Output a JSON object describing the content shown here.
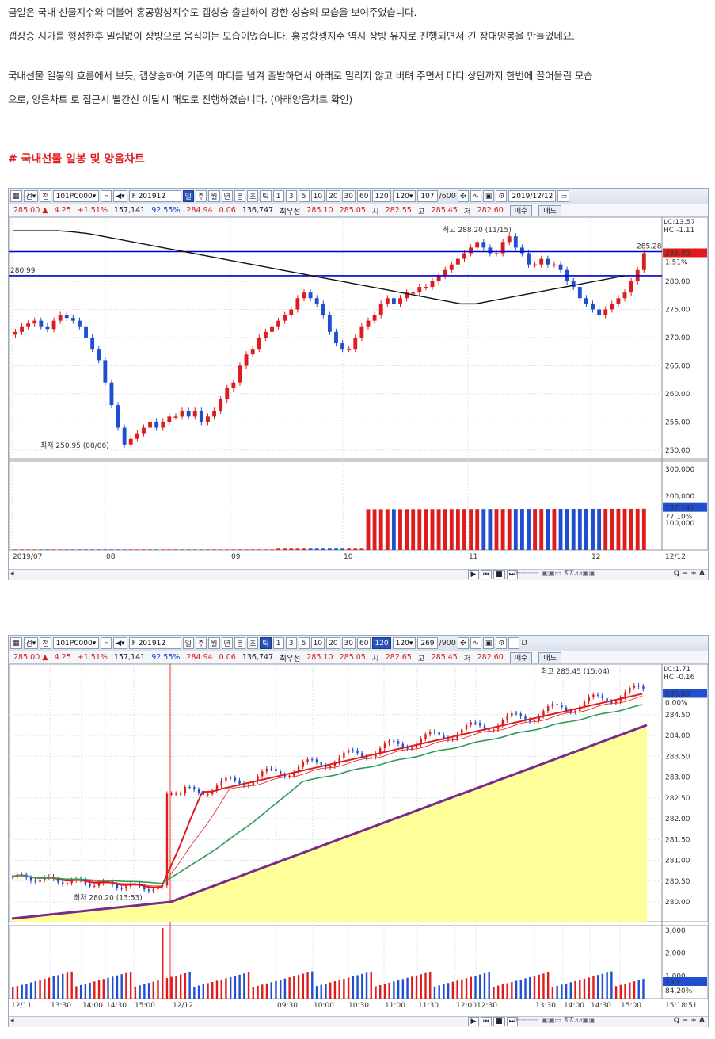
{
  "article": {
    "para1_line1": "금일은 국내 선물지수와 더불어 홍콩항셍지수도 갭상승 출발하여 강한 상승의 모습을 보여주었습니다.",
    "para1_line2": "갭상승 시가를 형성한후 밀림없이 상방으로 움직이는 모습이었습니다. 홍콩항셍지수 역시 상방 유지로 진행되면서 긴 장대양봉을 만들었네요.",
    "para2_line1": "국내선물 일봉의 흐름에서 보듯, 갭상승하여 기존의 마디를 넘겨 출발하면서 아래로 밀리지 않고 버텨 주면서 마디 상단까지 한번에 끌어올린 모습",
    "para2_line2": "으로, 양음차트 로 접근시 빨간선 이탈시 매도로 진행하였습니다. (아래양음차트 확인)",
    "heading": "# 국내선물 일봉 및 양음차트"
  },
  "toolbar": {
    "sun": "선",
    "jeon": "전",
    "code": "101PC000",
    "contract": "F 201912",
    "periods": [
      "일",
      "주",
      "월",
      "년",
      "분",
      "초",
      "틱"
    ],
    "intervals": [
      "1",
      "3",
      "5",
      "10",
      "20",
      "30",
      "60",
      "120"
    ],
    "interval_select": "120",
    "chart1_count": "107",
    "chart1_total": "/600",
    "chart1_date": "2019/12/12",
    "chart2_count": "269",
    "chart2_total": "/900",
    "chart2_extra": "D"
  },
  "quote": {
    "price": "285.00",
    "arrow": "▲",
    "change": "4.25",
    "pct": "+1.51%",
    "volume": "157,141",
    "ratio": "92.55%",
    "v1": "284.94",
    "v2": "0.06",
    "v3": "136,747",
    "best_label": "최우선",
    "bid": "285.10",
    "ask": "285.05",
    "open_label": "시",
    "open": "282.65",
    "high_label": "고",
    "high": "285.45",
    "low_label": "저",
    "low": "282.60",
    "buy": "매수",
    "sell": "매도",
    "chart1_open": "282.55"
  },
  "chart1": {
    "hi_annot": "최고 288.20 (11/15)",
    "lo_annot": "최저 250.95 (08/06)",
    "line_right": "285.28",
    "line_left": "280.99",
    "lc": "LC:13.57",
    "hc": "HC:-1.11",
    "cur_price": "285.00",
    "cur_pct": "1.51%",
    "yticks": [
      "280.00",
      "275.00",
      "270.00",
      "265.00",
      "260.00",
      "255.00",
      "250.00"
    ],
    "vol_ticks": [
      "300,000",
      "200,000",
      "100,000"
    ],
    "vol_cur": "157,141",
    "vol_pct": "77.10%",
    "xlabels": [
      "2019/07",
      "08",
      "09",
      "10",
      "11",
      "12"
    ],
    "xend": "12/12"
  },
  "chart2": {
    "hi_annot": "최고 285.45 (15:04)",
    "lo_annot": "최저 280.20 (13:53)",
    "lc": "LC:1.71",
    "hc": "HC:-0.16",
    "cur_price": "285.00",
    "cur_pct": "0.00%",
    "yticks": [
      "284.50",
      "284.00",
      "283.50",
      "283.00",
      "282.50",
      "282.00",
      "281.50",
      "281.00",
      "280.50",
      "280.00"
    ],
    "vol_ticks": [
      "3,000",
      "2,000",
      "1,000"
    ],
    "vol_cur": "730",
    "vol_pct": "84.20%",
    "xlabels": [
      "12/11",
      "13:30",
      "14:00",
      "14:30",
      "15:00",
      "12/12",
      "09:30",
      "10:00",
      "10:30",
      "11:00",
      "11:30",
      "12:00",
      "12:30",
      "13:30",
      "14:00",
      "14:30",
      "15:00"
    ],
    "xend": "15:18:51"
  },
  "bottom": {
    "play_icons": [
      "▶",
      "⏮",
      "■",
      "⏭"
    ],
    "zoom": "Q − + A"
  },
  "colors": {
    "up": "#e01b1b",
    "down": "#1f4fd0",
    "ma_black": "#111111",
    "line_blue": "#0000cc",
    "ma_red": "#e01b1b",
    "ma_green": "#2e9a55",
    "ma_purple": "#7a2a8a",
    "fill_yellow": "#ffff99"
  }
}
